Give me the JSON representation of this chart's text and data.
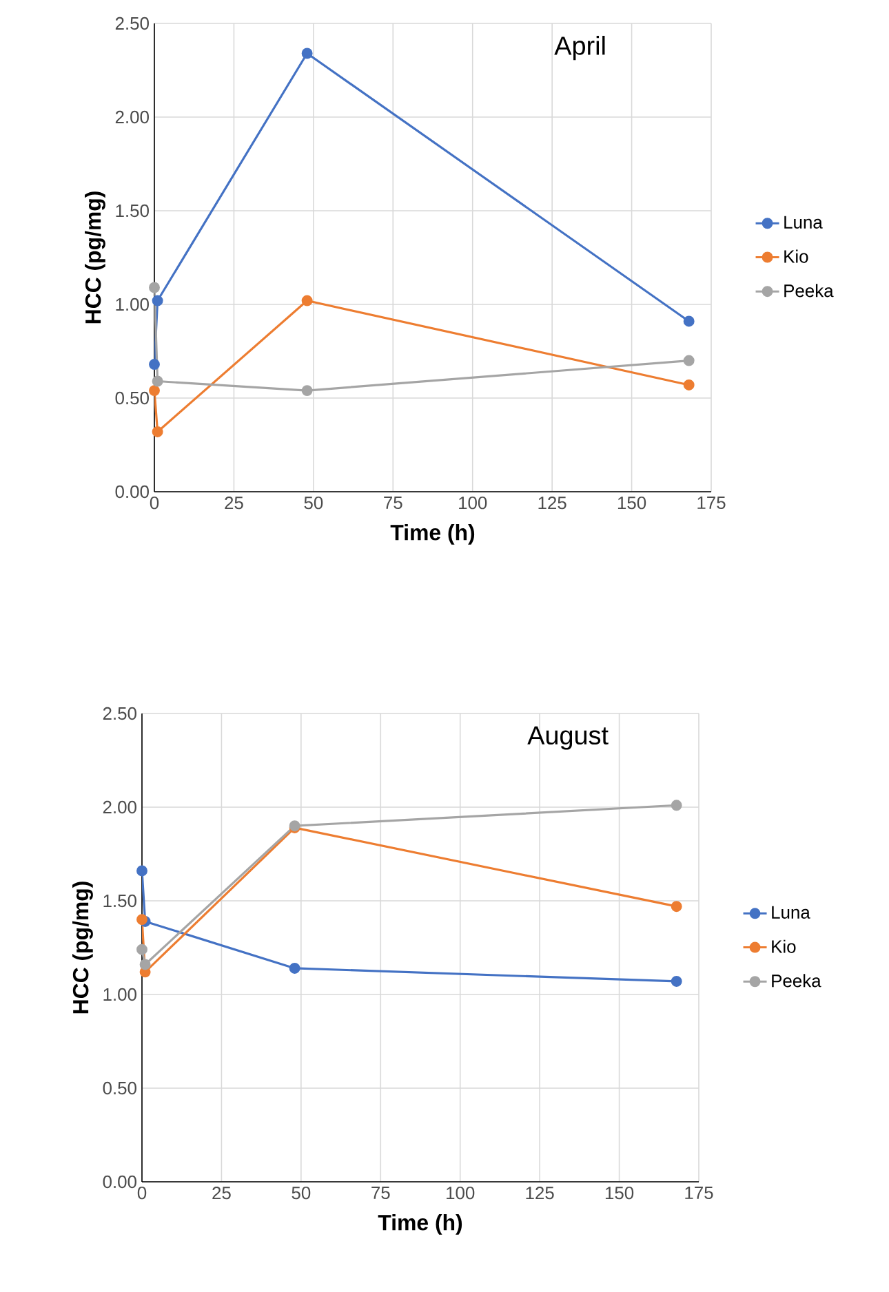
{
  "chart_data": [
    {
      "type": "line",
      "title": "April",
      "xlabel": "Time (h)",
      "ylabel": "HCC (pg/mg)",
      "x": [
        0,
        1,
        48,
        168
      ],
      "series": [
        {
          "name": "Luna",
          "color": "#4472c4",
          "values": [
            0.68,
            1.02,
            2.34,
            0.91
          ]
        },
        {
          "name": "Kio",
          "color": "#ed7d31",
          "values": [
            0.54,
            0.32,
            1.02,
            0.57
          ]
        },
        {
          "name": "Peeka",
          "color": "#a5a5a5",
          "values": [
            1.09,
            0.59,
            0.54,
            0.7
          ]
        }
      ],
      "xlim": [
        0,
        175
      ],
      "xticks": [
        0,
        25,
        50,
        75,
        100,
        125,
        150,
        175
      ],
      "ylim": [
        0,
        2.5
      ],
      "yticks": [
        {
          "value": 0,
          "label": "0.00"
        },
        {
          "value": 0.5,
          "label": "0.50"
        },
        {
          "value": 1,
          "label": "1.00"
        },
        {
          "value": 1.5,
          "label": "1.50"
        },
        {
          "value": 2,
          "label": "2.00"
        },
        {
          "value": 2.5,
          "label": "2.50"
        }
      ],
      "grid": true,
      "legend": "right",
      "marker": "circle",
      "line_style": "solid"
    },
    {
      "type": "line",
      "title": "August",
      "xlabel": "Time (h)",
      "ylabel": "HCC (pg/mg)",
      "x": [
        0,
        1,
        48,
        168
      ],
      "series": [
        {
          "name": "Luna",
          "color": "#4472c4",
          "values": [
            1.66,
            1.39,
            1.14,
            1.07
          ]
        },
        {
          "name": "Kio",
          "color": "#ed7d31",
          "values": [
            1.4,
            1.12,
            1.89,
            1.47
          ]
        },
        {
          "name": "Peeka",
          "color": "#a5a5a5",
          "values": [
            1.24,
            1.16,
            1.9,
            2.01
          ]
        }
      ],
      "xlim": [
        0,
        175
      ],
      "xticks": [
        0,
        25,
        50,
        75,
        100,
        125,
        150,
        175
      ],
      "ylim": [
        0,
        2.5
      ],
      "yticks": [
        {
          "value": 0,
          "label": "0.00"
        },
        {
          "value": 0.5,
          "label": "0.50"
        },
        {
          "value": 1,
          "label": "1.00"
        },
        {
          "value": 1.5,
          "label": "1.50"
        },
        {
          "value": 2,
          "label": "2.00"
        },
        {
          "value": 2.5,
          "label": "2.50"
        }
      ],
      "grid": true,
      "legend": "right",
      "marker": "circle",
      "line_style": "solid"
    }
  ]
}
